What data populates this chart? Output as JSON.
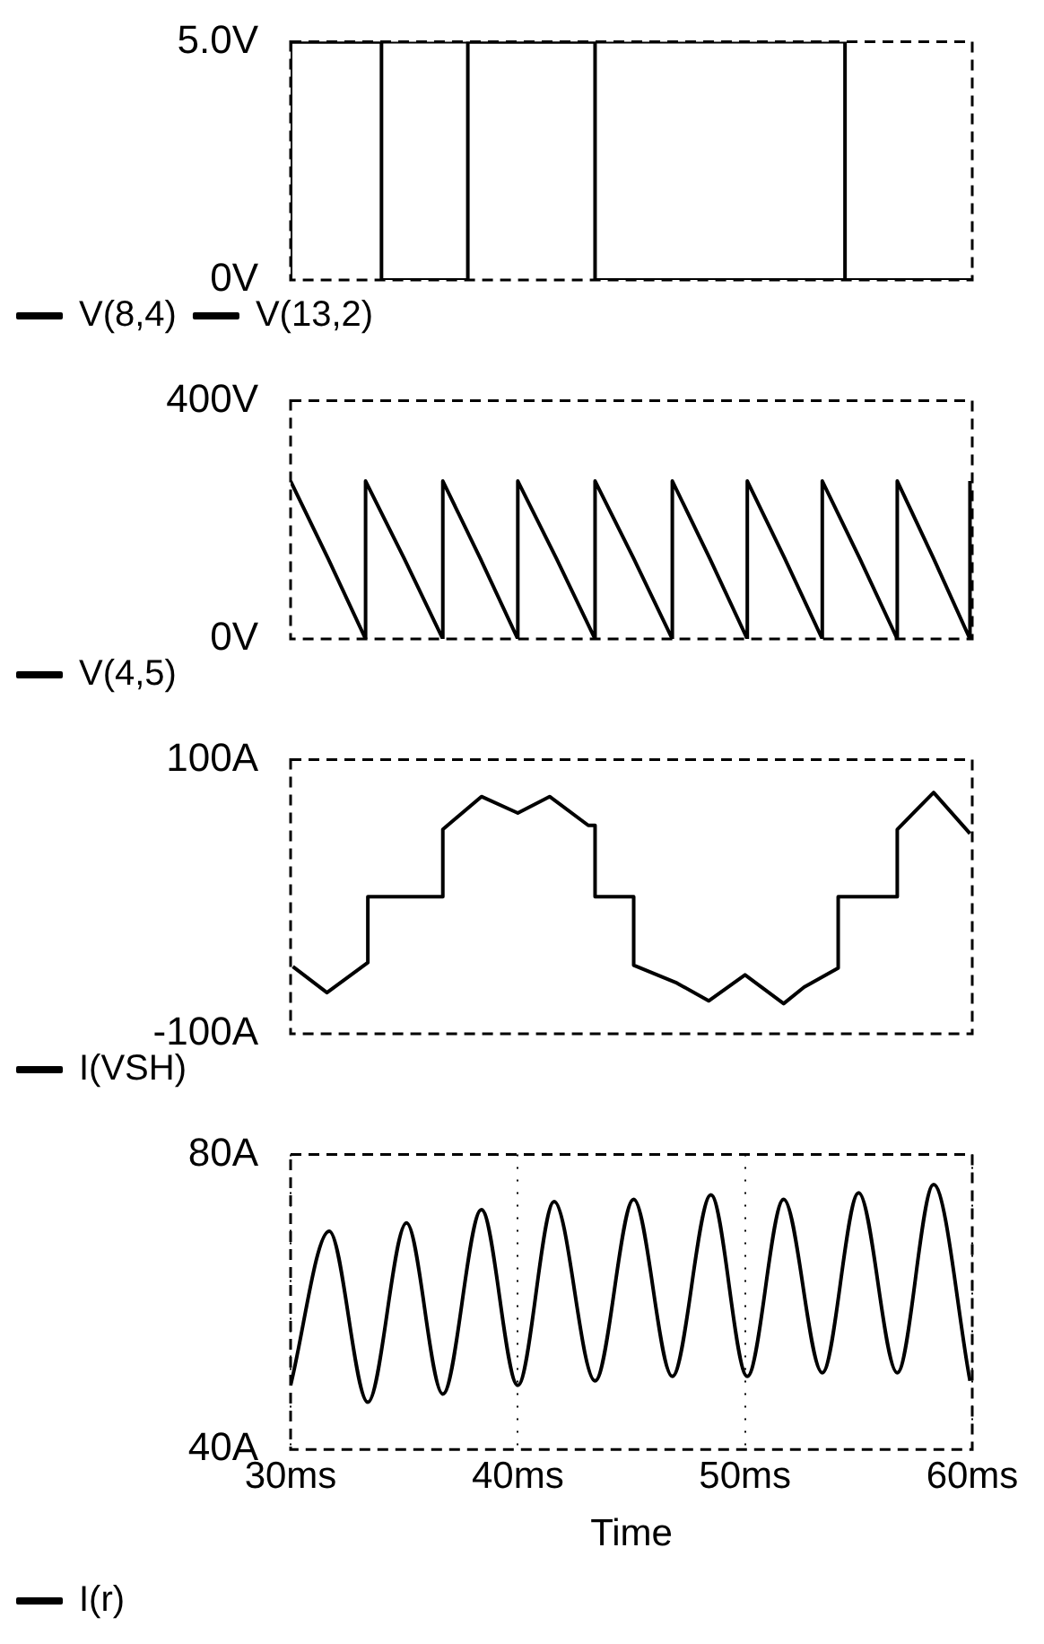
{
  "chart_data": [
    {
      "type": "step",
      "xlim": [
        30,
        60
      ],
      "ylim": [
        0,
        5
      ],
      "yticks": [
        {
          "value": 0,
          "label": "0V"
        },
        {
          "value": 5,
          "label": "5.0V"
        }
      ],
      "tick_labels": "y",
      "legend": "bottom",
      "series": [
        {
          "name": "V(8,4)",
          "color": "#000000",
          "x": [
            30,
            34.0,
            37.8,
            54.4,
            57.7,
            60
          ],
          "values": [
            0,
            5,
            0,
            5,
            0,
            0
          ]
        },
        {
          "name": "V(13,2)",
          "color": "#000000",
          "x": [
            30,
            43.4,
            46.8,
            60
          ],
          "values": [
            0,
            5,
            0,
            0
          ]
        }
      ]
    },
    {
      "type": "line",
      "xlim": [
        30,
        60
      ],
      "ylim": [
        0,
        400
      ],
      "yticks": [
        {
          "value": 0,
          "label": "0V"
        },
        {
          "value": 400,
          "label": "400V"
        }
      ],
      "tick_labels": "y",
      "legend": "bottom",
      "series": [
        {
          "name": "V(4,5)",
          "color": "#000000",
          "x": [
            30.0,
            31.65,
            33.3,
            33.3,
            35.0,
            36.7,
            36.7,
            38.35,
            40.0,
            40.0,
            41.7,
            43.4,
            43.4,
            45.1,
            46.8,
            46.8,
            48.45,
            50.1,
            50.1,
            51.75,
            53.4,
            53.4,
            55.05,
            56.7,
            56.7,
            58.3,
            59.9,
            59.9
          ],
          "values": [
            265,
            135,
            0,
            265,
            135,
            0,
            265,
            135,
            0,
            265,
            135,
            0,
            265,
            135,
            0,
            265,
            135,
            0,
            265,
            135,
            0,
            265,
            135,
            0,
            265,
            135,
            0,
            265
          ]
        }
      ]
    },
    {
      "type": "line",
      "xlim": [
        30,
        60
      ],
      "ylim": [
        -100,
        100
      ],
      "yticks": [
        {
          "value": -100,
          "label": "-100A"
        },
        {
          "value": 100,
          "label": "100A"
        }
      ],
      "tick_labels": "y",
      "legend": "bottom",
      "series": [
        {
          "name": "I(VSH)",
          "color": "#000000",
          "x": [
            30.1,
            31.6,
            33.4,
            33.4,
            36.7,
            36.7,
            38.4,
            40.0,
            41.4,
            43.1,
            43.4,
            43.4,
            45.1,
            45.1,
            47.0,
            48.4,
            50.0,
            51.7,
            52.6,
            54.1,
            54.1,
            56.7,
            56.7,
            58.3,
            59.9
          ],
          "values": [
            -51,
            -70,
            -48,
            0,
            0,
            49,
            73,
            61,
            73,
            52,
            52,
            0,
            0,
            -50,
            -63,
            -76,
            -57,
            -78,
            -66,
            -52,
            0,
            0,
            49,
            76,
            46
          ]
        }
      ]
    },
    {
      "type": "line",
      "xlim": [
        30,
        60
      ],
      "xticks": [
        {
          "value": 30,
          "label": "30ms"
        },
        {
          "value": 40,
          "label": "40ms"
        },
        {
          "value": 50,
          "label": "50ms"
        },
        {
          "value": 60,
          "label": "60ms"
        }
      ],
      "ylim": [
        40,
        80
      ],
      "yticks": [
        {
          "value": 40,
          "label": "40A"
        },
        {
          "value": 80,
          "label": "80A"
        }
      ],
      "grid": "x",
      "legend": "bottom",
      "xlabel": "Time",
      "series": [
        {
          "name": "I(r)",
          "color": "#000000",
          "x": [
            30.0,
            31.7,
            33.4,
            35.1,
            36.7,
            38.4,
            40.0,
            41.6,
            43.4,
            45.1,
            46.8,
            48.5,
            50.1,
            51.7,
            53.4,
            55.0,
            56.7,
            58.3,
            59.9
          ],
          "values": [
            48.7,
            69.6,
            46.4,
            70.7,
            47.5,
            72.5,
            48.7,
            73.6,
            49.3,
            73.9,
            49.9,
            74.5,
            49.9,
            73.9,
            50.4,
            74.8,
            50.4,
            75.9,
            49.3
          ]
        }
      ]
    }
  ]
}
